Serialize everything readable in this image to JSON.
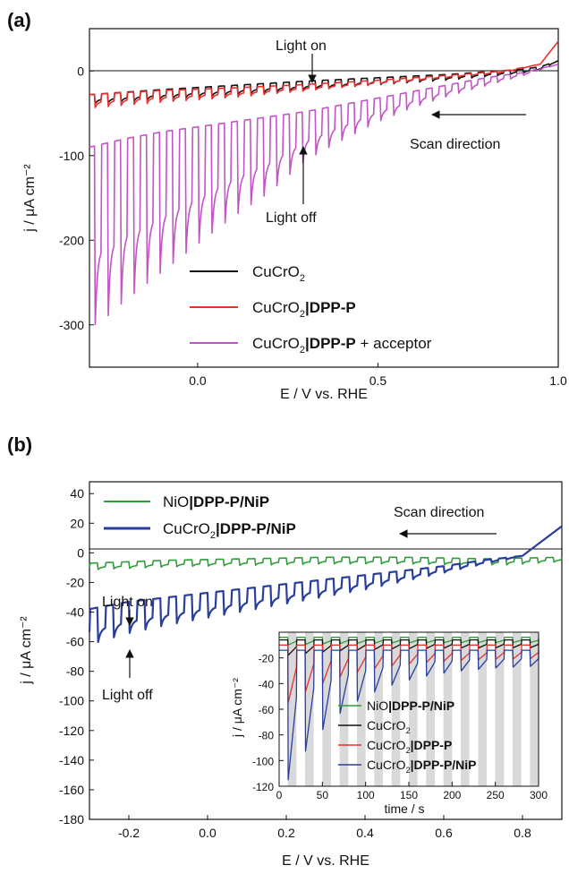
{
  "figure": {
    "panels": [
      {
        "label": "(a)",
        "xlabel": "E / V vs. RHE",
        "ylabel": "j / μA cm⁻²",
        "xlim": [
          -0.3,
          1.0
        ],
        "ylim": [
          -350,
          50
        ],
        "xticks": [
          0.0,
          0.5,
          1.0
        ],
        "xtick_labels": [
          "0.0",
          "0.5",
          "1.0"
        ],
        "yticks": [
          0,
          -100,
          -200,
          -300
        ],
        "ytick_labels": [
          "0",
          "-100",
          "-200",
          "-300"
        ],
        "annotations": {
          "light_on": "Light on",
          "light_off": "Light off",
          "scan_direction": "Scan direction"
        },
        "legend": [
          {
            "plain": "CuCrO",
            "sub": "2",
            "bold": "",
            "tail": "",
            "color": "#111111"
          },
          {
            "plain": "CuCrO",
            "sub": "2",
            "bold": "|DPP-P",
            "tail": "",
            "color": "#e8312f"
          },
          {
            "plain": "CuCrO",
            "sub": "2",
            "bold": "|DPP-P",
            "tail": " + acceptor",
            "color": "#c155c6"
          }
        ]
      },
      {
        "label": "(b)",
        "xlabel": "E / V vs. RHE",
        "ylabel": "j / μA cm⁻²",
        "xlim": [
          -0.3,
          0.9
        ],
        "ylim": [
          -180,
          48
        ],
        "xticks": [
          -0.2,
          0.0,
          0.2,
          0.4,
          0.6,
          0.8
        ],
        "xtick_labels": [
          "-0.2",
          "0.0",
          "0.2",
          "0.4",
          "0.6",
          "0.8"
        ],
        "yticks": [
          40,
          20,
          0,
          -20,
          -40,
          -60,
          -80,
          -100,
          -120,
          -140,
          -160,
          -180
        ],
        "ytick_labels": [
          "40",
          "20",
          "0",
          "-20",
          "-40",
          "-60",
          "-80",
          "-100",
          "-120",
          "-140",
          "-160",
          "-180"
        ],
        "annotations": {
          "light_on": "Light on",
          "light_off": "Light off",
          "scan_direction": "Scan direction"
        },
        "legend": [
          {
            "plain": "NiO",
            "sub": "",
            "bold": "|DPP-P/NiP",
            "tail": "",
            "color": "#2e9e3a"
          },
          {
            "plain": "CuCrO",
            "sub": "2",
            "bold": "|DPP-P/NiP",
            "tail": "",
            "color": "#2a3f9c"
          }
        ],
        "inset": {
          "xlabel": "time / s",
          "ylabel": "j / μA cm⁻²",
          "xlim": [
            0,
            300
          ],
          "ylim": [
            -120,
            0
          ],
          "xticks": [
            0,
            50,
            100,
            150,
            200,
            250,
            300
          ],
          "xtick_labels": [
            "0",
            "50",
            "100",
            "150",
            "200",
            "250",
            "300"
          ],
          "yticks": [
            -20,
            -40,
            -60,
            -80,
            -100,
            -120
          ],
          "ytick_labels": [
            "-20",
            "-40",
            "-60",
            "-80",
            "-100",
            "-120"
          ],
          "legend": [
            {
              "plain": "NiO",
              "sub": "",
              "bold": "|DPP-P/NiP",
              "tail": "",
              "color": "#2e9e3a"
            },
            {
              "plain": "CuCrO",
              "sub": "2",
              "bold": "",
              "tail": "",
              "color": "#111111"
            },
            {
              "plain": "CuCrO",
              "sub": "2",
              "bold": "|DPP-P",
              "tail": "",
              "color": "#e8312f"
            },
            {
              "plain": "CuCrO",
              "sub": "2",
              "bold": "|DPP-P/NiP",
              "tail": "",
              "color": "#2a3f9c"
            }
          ]
        }
      }
    ]
  },
  "chart_data": [
    {
      "type": "line",
      "panel": "(a)",
      "xlabel": "E / V vs. RHE",
      "ylabel": "j / μA cm⁻²",
      "xlim": [
        -0.3,
        1.0
      ],
      "ylim": [
        -350,
        50
      ],
      "chopped_light": {
        "period_V": 0.036,
        "start_V": -0.285
      },
      "series": [
        {
          "name": "CuCrO2",
          "color": "#111111",
          "x": [
            -0.3,
            -0.1,
            0.1,
            0.3,
            0.5,
            0.7,
            0.9,
            0.95,
            1.0
          ],
          "dark": [
            -28,
            -22,
            -17,
            -12,
            -8,
            -4,
            2,
            5,
            12
          ],
          "light": [
            -40,
            -34,
            -29,
            -23,
            -17,
            -11,
            -3,
            1,
            12
          ]
        },
        {
          "name": "CuCrO2|DPP-P",
          "color": "#e8312f",
          "x": [
            -0.3,
            -0.1,
            0.1,
            0.3,
            0.5,
            0.7,
            0.85,
            0.95,
            1.0
          ],
          "dark": [
            -28,
            -23,
            -20,
            -16,
            -11,
            -5,
            0,
            8,
            35
          ],
          "light": [
            -45,
            -38,
            -32,
            -24,
            -16,
            -8,
            -2,
            8,
            35
          ]
        },
        {
          "name": "CuCrO2|DPP-P + acceptor",
          "color": "#c155c6",
          "x": [
            -0.3,
            -0.25,
            -0.2,
            -0.1,
            0.0,
            0.1,
            0.2,
            0.3,
            0.4,
            0.5,
            0.6,
            0.7,
            0.8,
            0.9,
            1.0
          ],
          "dark": [
            -90,
            -85,
            -80,
            -72,
            -66,
            -60,
            -54,
            -48,
            -40,
            -32,
            -24,
            -16,
            -8,
            -2,
            8
          ],
          "light": [
            -320,
            -305,
            -285,
            -250,
            -215,
            -180,
            -150,
            -110,
            -85,
            -62,
            -44,
            -30,
            -18,
            -6,
            8
          ]
        }
      ]
    },
    {
      "type": "line",
      "panel": "(b)",
      "xlabel": "E / V vs. RHE",
      "ylabel": "j / μA cm⁻²",
      "xlim": [
        -0.3,
        0.9
      ],
      "ylim": [
        -180,
        48
      ],
      "chopped_light": {
        "period_V": 0.04,
        "start_V": -0.28
      },
      "series": [
        {
          "name": "NiO|DPP-P/NiP",
          "color": "#2e9e3a",
          "x": [
            -0.3,
            -0.1,
            0.1,
            0.3,
            0.5,
            0.7,
            0.9
          ],
          "dark": [
            -7,
            -5,
            -4,
            -3,
            -3,
            -4,
            -3
          ],
          "light": [
            -12,
            -10,
            -9,
            -8,
            -8,
            -9,
            -6
          ]
        },
        {
          "name": "CuCrO2|DPP-P/NiP",
          "color": "#2a3f9c",
          "x": [
            -0.3,
            -0.2,
            -0.1,
            0.0,
            0.1,
            0.2,
            0.3,
            0.4,
            0.5,
            0.6,
            0.7,
            0.8,
            0.9
          ],
          "dark": [
            -38,
            -33,
            -30,
            -27,
            -24,
            -21,
            -18,
            -15,
            -12,
            -9,
            -5,
            -2,
            18
          ],
          "light": [
            -65,
            -57,
            -51,
            -46,
            -41,
            -36,
            -31,
            -26,
            -20,
            -14,
            -8,
            -2,
            18
          ]
        }
      ]
    },
    {
      "type": "line",
      "panel": "(b) inset",
      "xlabel": "time / s",
      "ylabel": "j / μA cm⁻²",
      "xlim": [
        0,
        300
      ],
      "ylim": [
        -120,
        0
      ],
      "chopped_light": {
        "period_s": 20,
        "first_light_on_s": 10
      },
      "series": [
        {
          "name": "NiO|DPP-P/NiP",
          "color": "#2e9e3a",
          "dark": -4,
          "light_start": -10,
          "light_end": -8
        },
        {
          "name": "CuCrO2",
          "color": "#111111",
          "dark": -6,
          "light_start": -18,
          "light_end": -12
        },
        {
          "name": "CuCrO2|DPP-P",
          "color": "#e8312f",
          "dark": -10,
          "light_start": -55,
          "light_end": -20
        },
        {
          "name": "CuCrO2|DPP-P/NiP",
          "color": "#2a3f9c",
          "dark": -14,
          "light_start": -115,
          "light_end": -25
        }
      ]
    }
  ]
}
